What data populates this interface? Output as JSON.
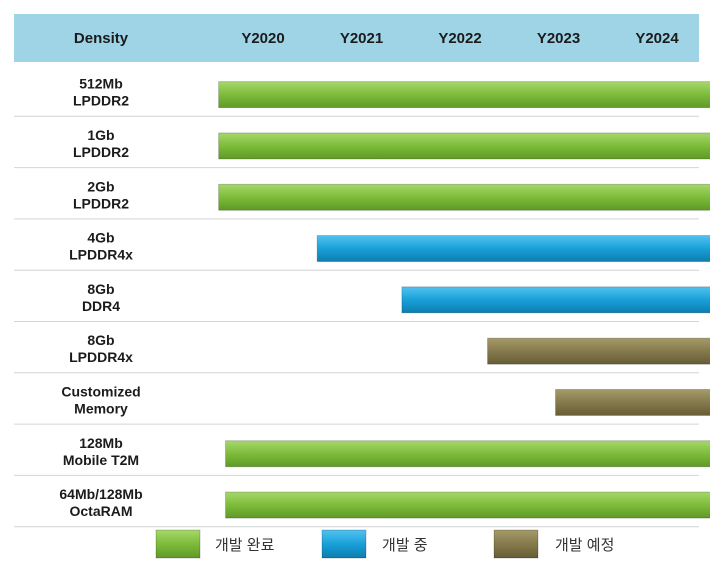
{
  "chart_data": {
    "type": "table",
    "header": {
      "density_label": "Density",
      "years": [
        "Y2020",
        "Y2021",
        "Y2022",
        "Y2023",
        "Y2024"
      ]
    },
    "rows": [
      {
        "line1": "512Mb",
        "line2": "LPDDR2",
        "status": "done",
        "start": 2019.55,
        "end": 2024.58
      },
      {
        "line1": "1Gb",
        "line2": "LPDDR2",
        "status": "done",
        "start": 2019.55,
        "end": 2024.58
      },
      {
        "line1": "2Gb",
        "line2": "LPDDR2",
        "status": "done",
        "start": 2019.55,
        "end": 2024.57
      },
      {
        "line1": "4Gb",
        "line2": "LPDDR4x",
        "status": "in_progress",
        "start": 2020.55,
        "end": 2024.58
      },
      {
        "line1": "8Gb",
        "line2": "DDR4",
        "status": "in_progress",
        "start": 2021.41,
        "end": 2024.6
      },
      {
        "line1": "8Gb",
        "line2": "LPDDR4x",
        "status": "planned",
        "start": 2022.28,
        "end": 2024.64
      },
      {
        "line1": "Customized",
        "line2": "Memory",
        "status": "planned",
        "start": 2022.97,
        "end": 2024.64
      },
      {
        "line1": "128Mb",
        "line2": "Mobile T2M",
        "status": "done",
        "start": 2019.62,
        "end": 2024.64
      },
      {
        "line1": "64Mb/128Mb",
        "line2": "OctaRAM",
        "status": "done",
        "start": 2019.62,
        "end": 2024.64
      }
    ],
    "legend": [
      {
        "key": "done",
        "label": "개발 완료"
      },
      {
        "key": "in_progress",
        "label": "개발 중"
      },
      {
        "key": "planned",
        "label": "개발 예정"
      }
    ],
    "colors": {
      "header_bg": "#9fd3e6",
      "done": "#7dbb3a",
      "in_progress": "#19a0d8",
      "planned": "#857a4c",
      "separator": "#d4d4d4"
    }
  }
}
